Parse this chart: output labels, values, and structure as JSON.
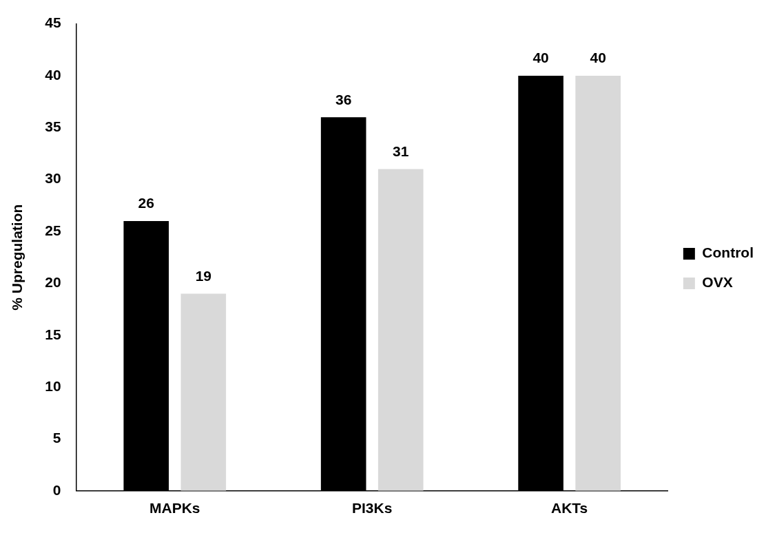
{
  "chart_data": {
    "type": "bar",
    "ylabel": "% Upregulation",
    "categories": [
      "MAPKs",
      "PI3Ks",
      "AKTs"
    ],
    "series": [
      {
        "name": "Control",
        "color": "#000000",
        "values": [
          26,
          36,
          40
        ]
      },
      {
        "name": "OVX",
        "color": "#d9d9d9",
        "values": [
          19,
          31,
          40
        ]
      }
    ],
    "ylim": [
      0,
      45
    ],
    "yticks": [
      0,
      5,
      10,
      15,
      20,
      25,
      30,
      35,
      40,
      45
    ],
    "grid": false,
    "legend": "right",
    "data_labels": true
  }
}
